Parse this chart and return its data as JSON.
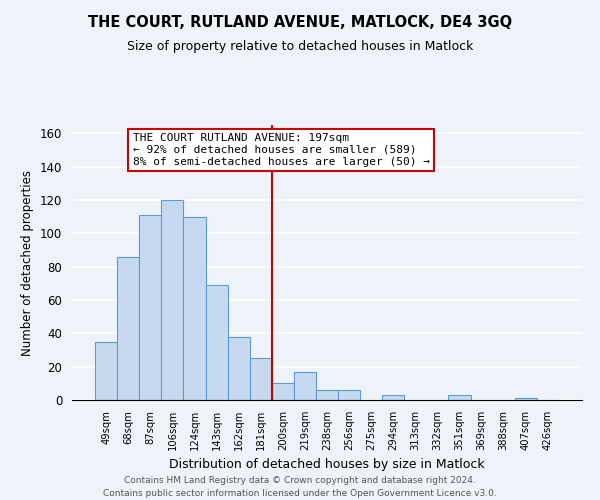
{
  "title": "THE COURT, RUTLAND AVENUE, MATLOCK, DE4 3GQ",
  "subtitle": "Size of property relative to detached houses in Matlock",
  "xlabel": "Distribution of detached houses by size in Matlock",
  "ylabel": "Number of detached properties",
  "bar_labels": [
    "49sqm",
    "68sqm",
    "87sqm",
    "106sqm",
    "124sqm",
    "143sqm",
    "162sqm",
    "181sqm",
    "200sqm",
    "219sqm",
    "238sqm",
    "256sqm",
    "275sqm",
    "294sqm",
    "313sqm",
    "332sqm",
    "351sqm",
    "369sqm",
    "388sqm",
    "407sqm",
    "426sqm"
  ],
  "bar_heights": [
    35,
    86,
    111,
    120,
    110,
    69,
    38,
    25,
    10,
    17,
    6,
    6,
    0,
    3,
    0,
    0,
    3,
    0,
    0,
    1,
    0
  ],
  "bar_color": "#c6d9f0",
  "bar_edge_color": "#5b9bd5",
  "vline_index": 8,
  "vline_color": "#cc0000",
  "annotation_line1": "THE COURT RUTLAND AVENUE: 197sqm",
  "annotation_line2": "← 92% of detached houses are smaller (589)",
  "annotation_line3": "8% of semi-detached houses are larger (50) →",
  "annotation_box_color": "#ffffff",
  "annotation_box_edge": "#cc0000",
  "ylim": [
    0,
    165
  ],
  "yticks": [
    0,
    20,
    40,
    60,
    80,
    100,
    120,
    140,
    160
  ],
  "footnote1": "Contains HM Land Registry data © Crown copyright and database right 2024.",
  "footnote2": "Contains public sector information licensed under the Open Government Licence v3.0.",
  "bg_color": "#eef2f9",
  "plot_bg_color": "#eef2f9"
}
